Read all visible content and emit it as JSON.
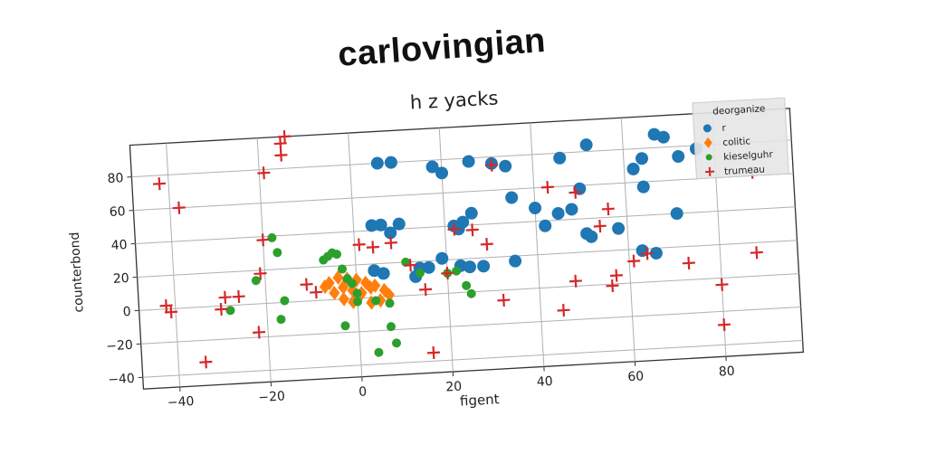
{
  "header": {
    "title": "carlovingian"
  },
  "chart_data": {
    "type": "scatter",
    "title": "h z yacks",
    "xlabel": "figent",
    "ylabel": "counterbond",
    "xlim": [
      -48,
      97
    ],
    "ylim": [
      -47,
      99
    ],
    "xticks": [
      -40,
      -20,
      0,
      20,
      40,
      60,
      80
    ],
    "xtick_labels": [
      "−40",
      "−20",
      "0",
      "20",
      "40",
      "60",
      "80"
    ],
    "yticks": [
      -40,
      -20,
      0,
      20,
      40,
      60,
      80
    ],
    "ytick_labels": [
      "−40",
      "−20",
      "0",
      "20",
      "40",
      "60",
      "80"
    ],
    "grid": true,
    "legend_title": "deorganize",
    "legend_position": "top-right",
    "colors": {
      "r": "#1f77b4",
      "colitic": "#ff7f0e",
      "kieselguhr": "#2ca02c",
      "trumeau": "#d62728"
    },
    "series": [
      {
        "name": "r",
        "marker": "circle",
        "points": [
          [
            6,
            80
          ],
          [
            9,
            80
          ],
          [
            18,
            76
          ],
          [
            20,
            72
          ],
          [
            26,
            78
          ],
          [
            31,
            76
          ],
          [
            34,
            74
          ],
          [
            52,
            84
          ],
          [
            46,
            77
          ],
          [
            62,
            68
          ],
          [
            64,
            74
          ],
          [
            67,
            88
          ],
          [
            69,
            86
          ],
          [
            72,
            74
          ],
          [
            76,
            78
          ],
          [
            35,
            55
          ],
          [
            40,
            48
          ],
          [
            42,
            37
          ],
          [
            45,
            44
          ],
          [
            48,
            46
          ],
          [
            50,
            58
          ],
          [
            51,
            31
          ],
          [
            58,
            33
          ],
          [
            52,
            29
          ],
          [
            63,
            19
          ],
          [
            66,
            17
          ],
          [
            71,
            40
          ],
          [
            4,
            43
          ],
          [
            6,
            43
          ],
          [
            10,
            43
          ],
          [
            8,
            38
          ],
          [
            4,
            16
          ],
          [
            6,
            14
          ],
          [
            16,
            16
          ],
          [
            19,
            21
          ],
          [
            23,
            16
          ],
          [
            25,
            15
          ],
          [
            28,
            15
          ],
          [
            22,
            40
          ],
          [
            23,
            38
          ],
          [
            24,
            42
          ],
          [
            26,
            47
          ],
          [
            35,
            17
          ],
          [
            13,
            11
          ],
          [
            14,
            16
          ],
          [
            64,
            57
          ]
        ]
      },
      {
        "name": "colitic",
        "marker": "diamond",
        "points": [
          [
            -6,
            10
          ],
          [
            -4,
            13
          ],
          [
            -2,
            12
          ],
          [
            0,
            11
          ],
          [
            2,
            9
          ],
          [
            4,
            7
          ],
          [
            6,
            4
          ],
          [
            7,
            1
          ],
          [
            5,
            -2
          ],
          [
            3,
            -3
          ],
          [
            -1,
            -2
          ],
          [
            -3,
            0
          ],
          [
            -5,
            4
          ],
          [
            -7,
            8
          ],
          [
            -1,
            5
          ],
          [
            1,
            3
          ],
          [
            3,
            6
          ],
          [
            -3,
            7
          ]
        ]
      },
      {
        "name": "kieselguhr",
        "marker": "circle",
        "points": [
          [
            -18,
            39
          ],
          [
            -17,
            30
          ],
          [
            -22,
            14
          ],
          [
            -16,
            1
          ],
          [
            -17,
            -10
          ],
          [
            -28,
            -3
          ],
          [
            -5,
            28
          ],
          [
            -4,
            27
          ],
          [
            -3,
            18
          ],
          [
            -2,
            12
          ],
          [
            -1,
            9
          ],
          [
            0,
            3
          ],
          [
            0,
            -2
          ],
          [
            4,
            -2
          ],
          [
            7,
            -4
          ],
          [
            -3,
            -16
          ],
          [
            7,
            -18
          ],
          [
            8,
            -28
          ],
          [
            4,
            -33
          ],
          [
            11,
            20
          ],
          [
            14,
            13
          ],
          [
            20,
            12
          ],
          [
            22,
            13
          ],
          [
            24,
            4
          ],
          [
            25,
            -1
          ],
          [
            -6,
            26
          ],
          [
            -7,
            24
          ]
        ]
      },
      {
        "name": "trumeau",
        "marker": "plus",
        "points": [
          [
            -42,
            75
          ],
          [
            -38,
            60
          ],
          [
            -19,
            78
          ],
          [
            -15,
            88
          ],
          [
            -15,
            95
          ],
          [
            -14,
            99
          ],
          [
            -20,
            38
          ],
          [
            -21,
            18
          ],
          [
            -22,
            -17
          ],
          [
            -26,
            5
          ],
          [
            -29,
            5
          ],
          [
            -30,
            -2
          ],
          [
            -34,
            -33
          ],
          [
            -42,
            2
          ],
          [
            -41,
            -2
          ],
          [
            -11,
            10
          ],
          [
            -9,
            5
          ],
          [
            1,
            32
          ],
          [
            4,
            30
          ],
          [
            8,
            32
          ],
          [
            12,
            18
          ],
          [
            15,
            3
          ],
          [
            16,
            -35
          ],
          [
            20,
            12
          ],
          [
            22,
            38
          ],
          [
            26,
            37
          ],
          [
            29,
            28
          ],
          [
            31,
            75
          ],
          [
            32,
            -6
          ],
          [
            43,
            60
          ],
          [
            45,
            -14
          ],
          [
            48,
            3
          ],
          [
            49,
            56
          ],
          [
            54,
            35
          ],
          [
            56,
            45
          ],
          [
            56,
            -1
          ],
          [
            57,
            5
          ],
          [
            61,
            13
          ],
          [
            64,
            17
          ],
          [
            73,
            10
          ],
          [
            80,
            -4
          ],
          [
            80,
            -28
          ],
          [
            88,
            14
          ],
          [
            88,
            62
          ]
        ]
      }
    ]
  }
}
